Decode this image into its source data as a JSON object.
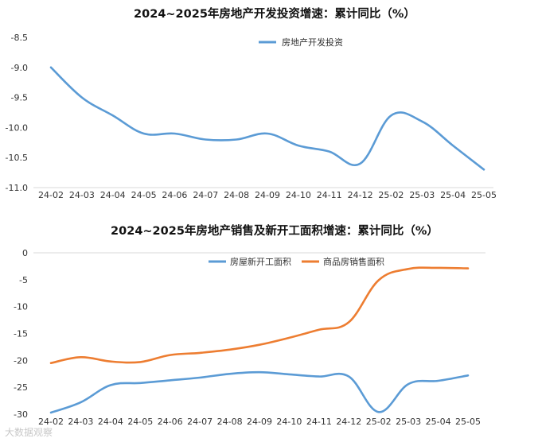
{
  "chart_data": [
    {
      "type": "line",
      "title": "2024~2025年房地产开发投资增速：累计同比（%）",
      "categories": [
        "24-02",
        "24-03",
        "24-04",
        "24-05",
        "24-06",
        "24-07",
        "24-08",
        "24-09",
        "24-10",
        "24-11",
        "24-12",
        "25-02",
        "25-03",
        "25-04",
        "25-05"
      ],
      "series": [
        {
          "name": "房地产开发投资",
          "color": "#5b9bd5",
          "values": [
            -9.0,
            -9.5,
            -9.8,
            -10.1,
            -10.1,
            -10.2,
            -10.2,
            -10.1,
            -10.3,
            -10.4,
            -10.6,
            -9.8,
            -9.9,
            -10.3,
            -10.7
          ]
        }
      ],
      "ylim": [
        -11.0,
        -8.5
      ],
      "yticks": [
        "-8.5",
        "-9.0",
        "-9.5",
        "-10.0",
        "-10.5",
        "-11.0"
      ],
      "legend_position": "top-center",
      "grid": false
    },
    {
      "type": "line",
      "title": "2024~2025年房地产销售及新开工面积增速：累计同比（%）",
      "categories": [
        "24-02",
        "24-03",
        "24-04",
        "24-05",
        "24-06",
        "24-07",
        "24-08",
        "24-09",
        "24-10",
        "24-11",
        "24-12",
        "25-02",
        "25-03",
        "25-04",
        "25-05"
      ],
      "series": [
        {
          "name": "房屋新开工面积",
          "color": "#5b9bd5",
          "values": [
            -29.7,
            -27.8,
            -24.6,
            -24.2,
            -23.7,
            -23.2,
            -22.5,
            -22.2,
            -22.6,
            -23.0,
            -23.0,
            -29.6,
            -24.4,
            -23.8,
            -22.8
          ]
        },
        {
          "name": "商品房销售面积",
          "color": "#ed7d31",
          "values": [
            -20.5,
            -19.4,
            -20.2,
            -20.3,
            -19.0,
            -18.6,
            -18.0,
            -17.1,
            -15.8,
            -14.3,
            -12.9,
            -5.1,
            -3.0,
            -2.8,
            -2.9
          ]
        }
      ],
      "ylim": [
        -30,
        0
      ],
      "yticks": [
        "0",
        "-5",
        "-10",
        "-15",
        "-20",
        "-25",
        "-30"
      ],
      "legend_position": "top-center",
      "grid": false
    }
  ],
  "watermark": "大数据观察"
}
